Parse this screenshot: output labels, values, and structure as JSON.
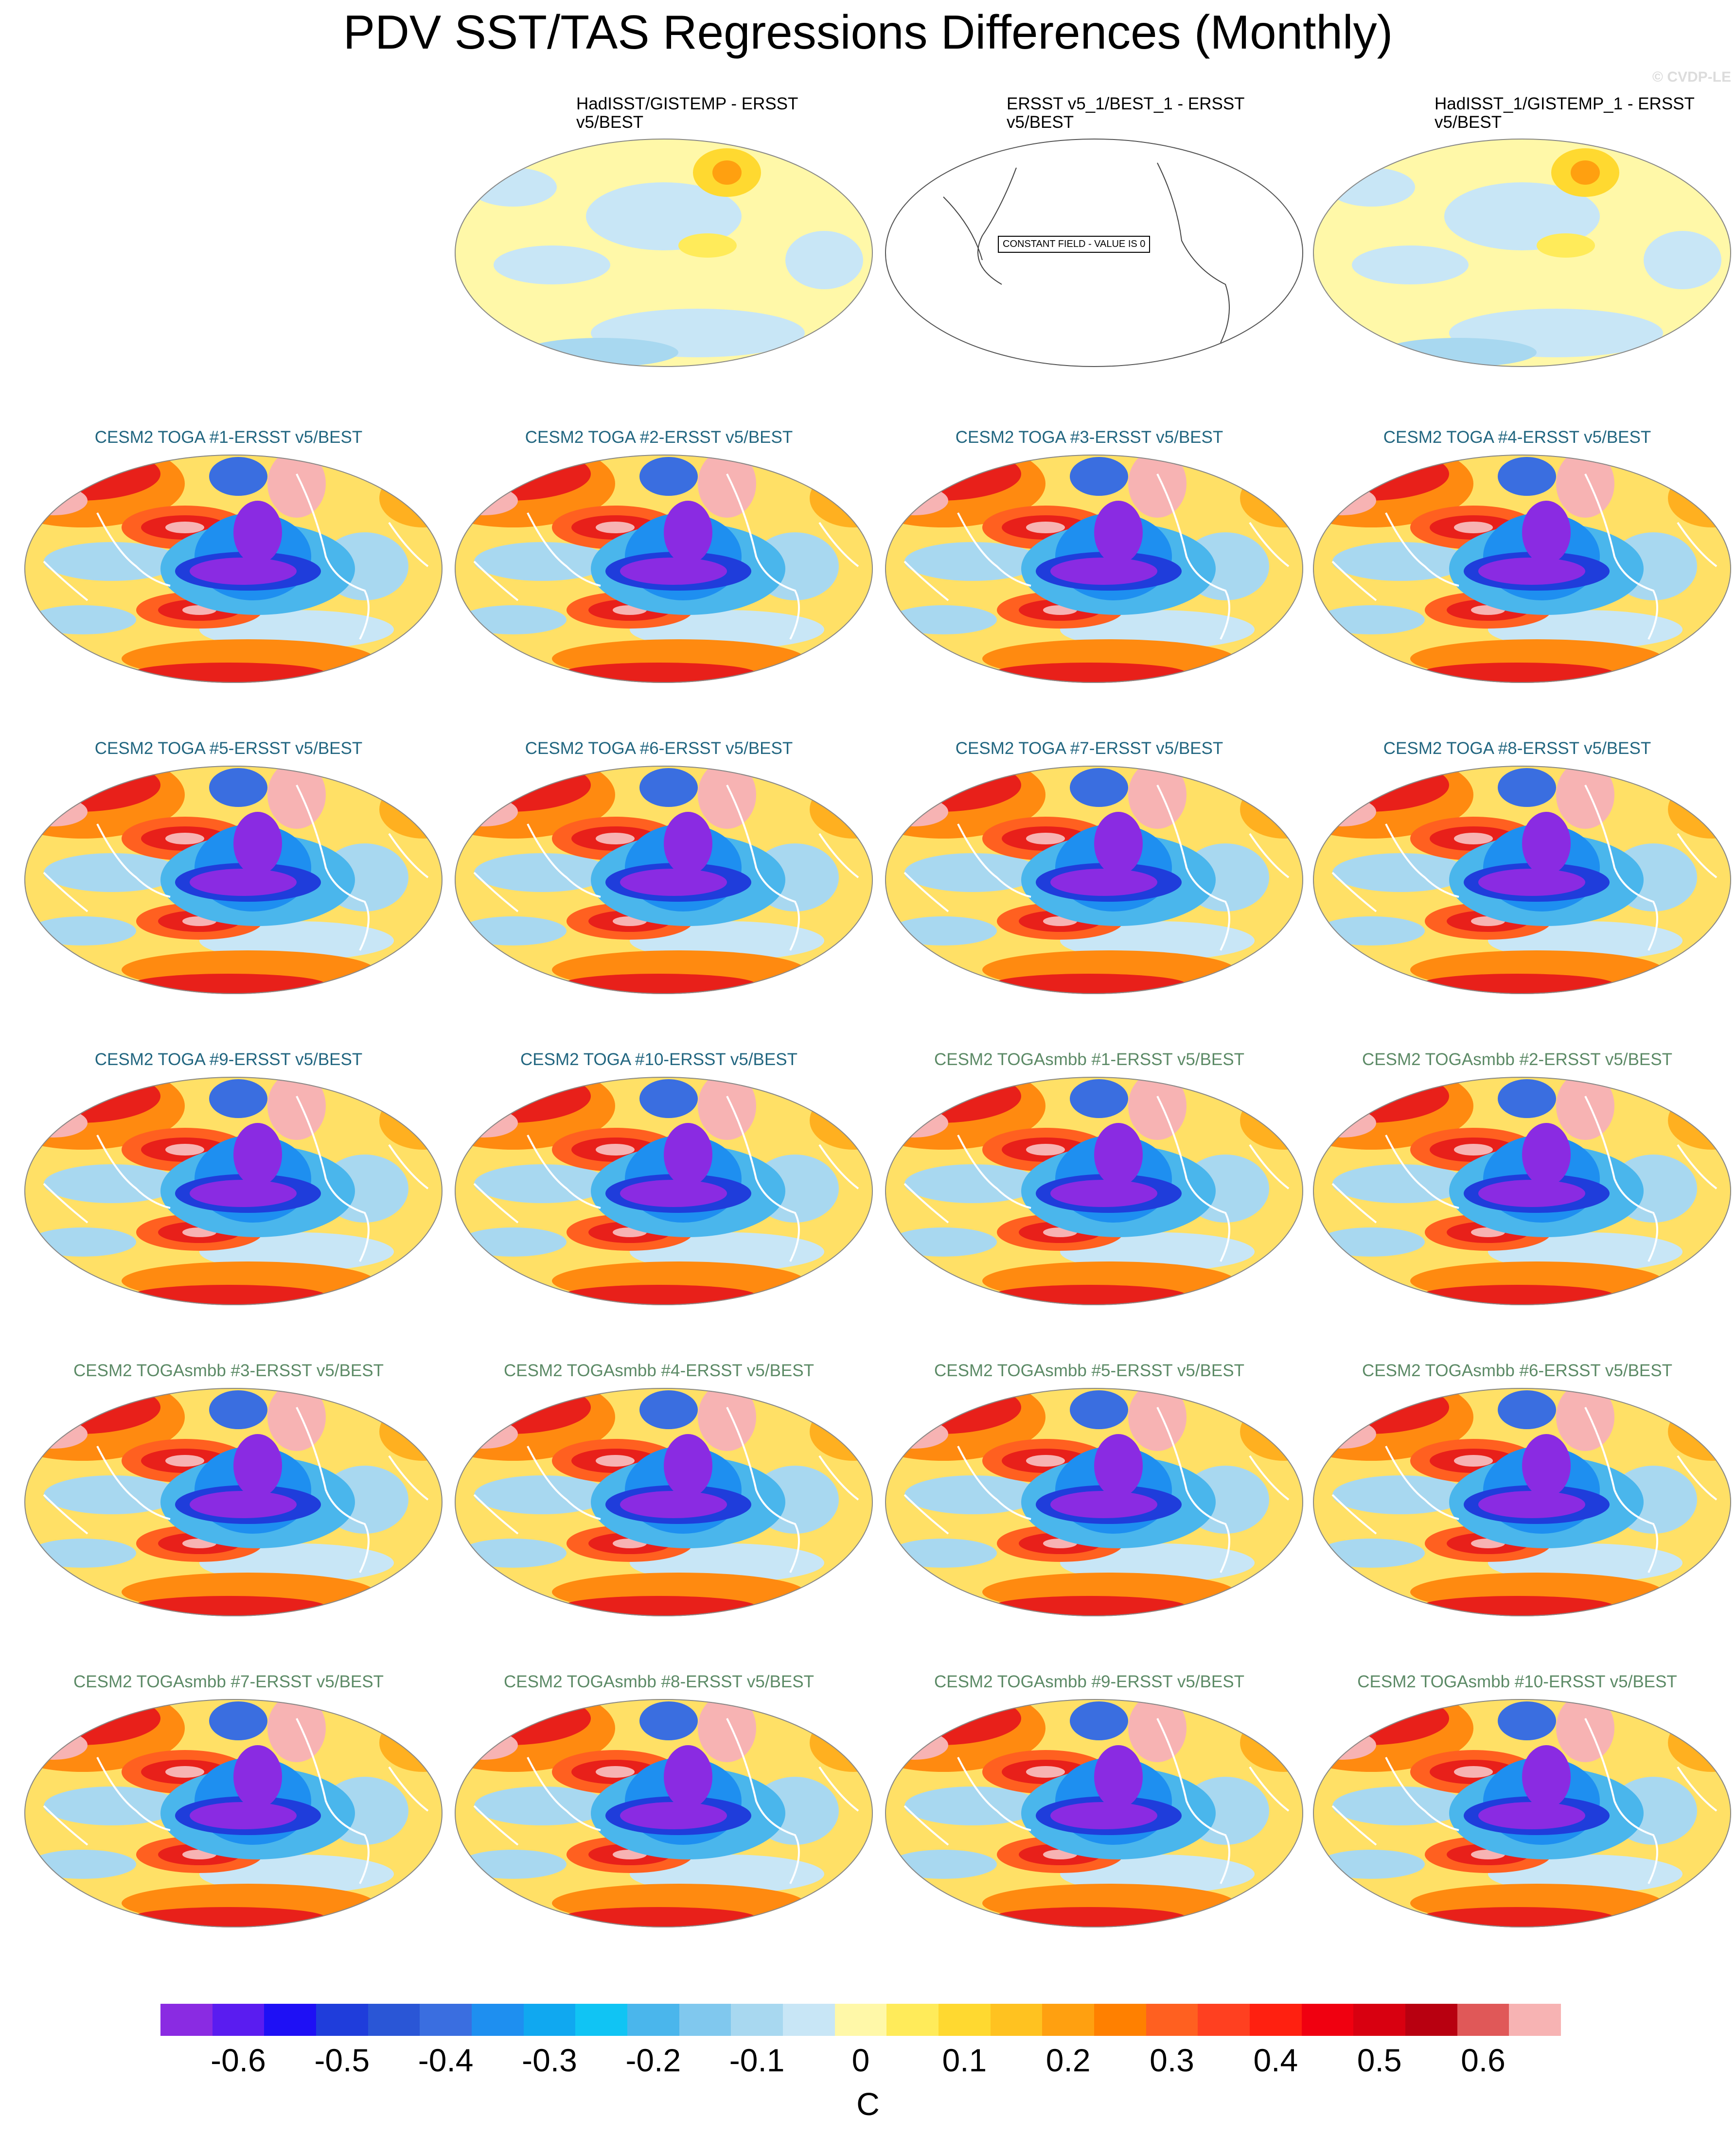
{
  "title": "PDV SST/TAS Regressions Differences (Monthly)",
  "watermark": "© CVDP-LE",
  "units": "C",
  "chart_data": {
    "type": "heatmap",
    "projection": "Robinson (Pacific-centered)",
    "colorbar": {
      "ticks": [
        "-0.6",
        "-0.5",
        "-0.4",
        "-0.3",
        "-0.2",
        "-0.1",
        "0",
        "0.1",
        "0.2",
        "0.3",
        "0.4",
        "0.5",
        "0.6"
      ],
      "tick_values": [
        -0.6,
        -0.5,
        -0.4,
        -0.3,
        -0.2,
        -0.1,
        0,
        0.1,
        0.2,
        0.3,
        0.4,
        0.5,
        0.6
      ],
      "colors": [
        "#8a2be2",
        "#5a1cf0",
        "#1e10f5",
        "#1f3ddb",
        "#2a56d6",
        "#3a6ee0",
        "#1e8ff0",
        "#10a8f0",
        "#10c4f4",
        "#4ab6ec",
        "#80c8ee",
        "#a8d8f0",
        "#c8e6f6",
        "#fff8a8",
        "#ffeb5a",
        "#ffd930",
        "#ffc220",
        "#ffa010",
        "#ff8000",
        "#ff6020",
        "#ff4020",
        "#ff2010",
        "#f00010",
        "#d80010",
        "#b80010",
        "#e05858",
        "#f7b3b3"
      ]
    },
    "panels": [
      {
        "title": "HadISST/GISTEMP - ERSST v5/BEST",
        "group": "obs",
        "pattern": "weak"
      },
      {
        "title": "ERSST v5_1/BEST_1 - ERSST v5/BEST",
        "group": "obs",
        "pattern": "constant",
        "annotation": "CONSTANT FIELD - VALUE IS 0"
      },
      {
        "title": "HadISST_1/GISTEMP_1 - ERSST v5/BEST",
        "group": "obs",
        "pattern": "weak"
      },
      {
        "title": "CESM2 TOGA #1-ERSST v5/BEST",
        "group": "toga",
        "pattern": "pdv"
      },
      {
        "title": "CESM2 TOGA #2-ERSST v5/BEST",
        "group": "toga",
        "pattern": "pdv"
      },
      {
        "title": "CESM2 TOGA #3-ERSST v5/BEST",
        "group": "toga",
        "pattern": "pdv"
      },
      {
        "title": "CESM2 TOGA #4-ERSST v5/BEST",
        "group": "toga",
        "pattern": "pdv"
      },
      {
        "title": "CESM2 TOGA #5-ERSST v5/BEST",
        "group": "toga",
        "pattern": "pdv"
      },
      {
        "title": "CESM2 TOGA #6-ERSST v5/BEST",
        "group": "toga",
        "pattern": "pdv"
      },
      {
        "title": "CESM2 TOGA #7-ERSST v5/BEST",
        "group": "toga",
        "pattern": "pdv"
      },
      {
        "title": "CESM2 TOGA #8-ERSST v5/BEST",
        "group": "toga",
        "pattern": "pdv"
      },
      {
        "title": "CESM2 TOGA #9-ERSST v5/BEST",
        "group": "toga",
        "pattern": "pdv"
      },
      {
        "title": "CESM2 TOGA #10-ERSST v5/BEST",
        "group": "toga",
        "pattern": "pdv"
      },
      {
        "title": "CESM2 TOGAsmbb #1-ERSST v5/BEST",
        "group": "smbb",
        "pattern": "pdv"
      },
      {
        "title": "CESM2 TOGAsmbb #2-ERSST v5/BEST",
        "group": "smbb",
        "pattern": "pdv"
      },
      {
        "title": "CESM2 TOGAsmbb #3-ERSST v5/BEST",
        "group": "smbb",
        "pattern": "pdv"
      },
      {
        "title": "CESM2 TOGAsmbb #4-ERSST v5/BEST",
        "group": "smbb",
        "pattern": "pdv"
      },
      {
        "title": "CESM2 TOGAsmbb #5-ERSST v5/BEST",
        "group": "smbb",
        "pattern": "pdv"
      },
      {
        "title": "CESM2 TOGAsmbb #6-ERSST v5/BEST",
        "group": "smbb",
        "pattern": "pdv"
      },
      {
        "title": "CESM2 TOGAsmbb #7-ERSST v5/BEST",
        "group": "smbb",
        "pattern": "pdv"
      },
      {
        "title": "CESM2 TOGAsmbb #8-ERSST v5/BEST",
        "group": "smbb",
        "pattern": "pdv"
      },
      {
        "title": "CESM2 TOGAsmbb #9-ERSST v5/BEST",
        "group": "smbb",
        "pattern": "pdv"
      },
      {
        "title": "CESM2 TOGAsmbb #10-ERSST v5/BEST",
        "group": "smbb",
        "pattern": "pdv"
      }
    ]
  }
}
